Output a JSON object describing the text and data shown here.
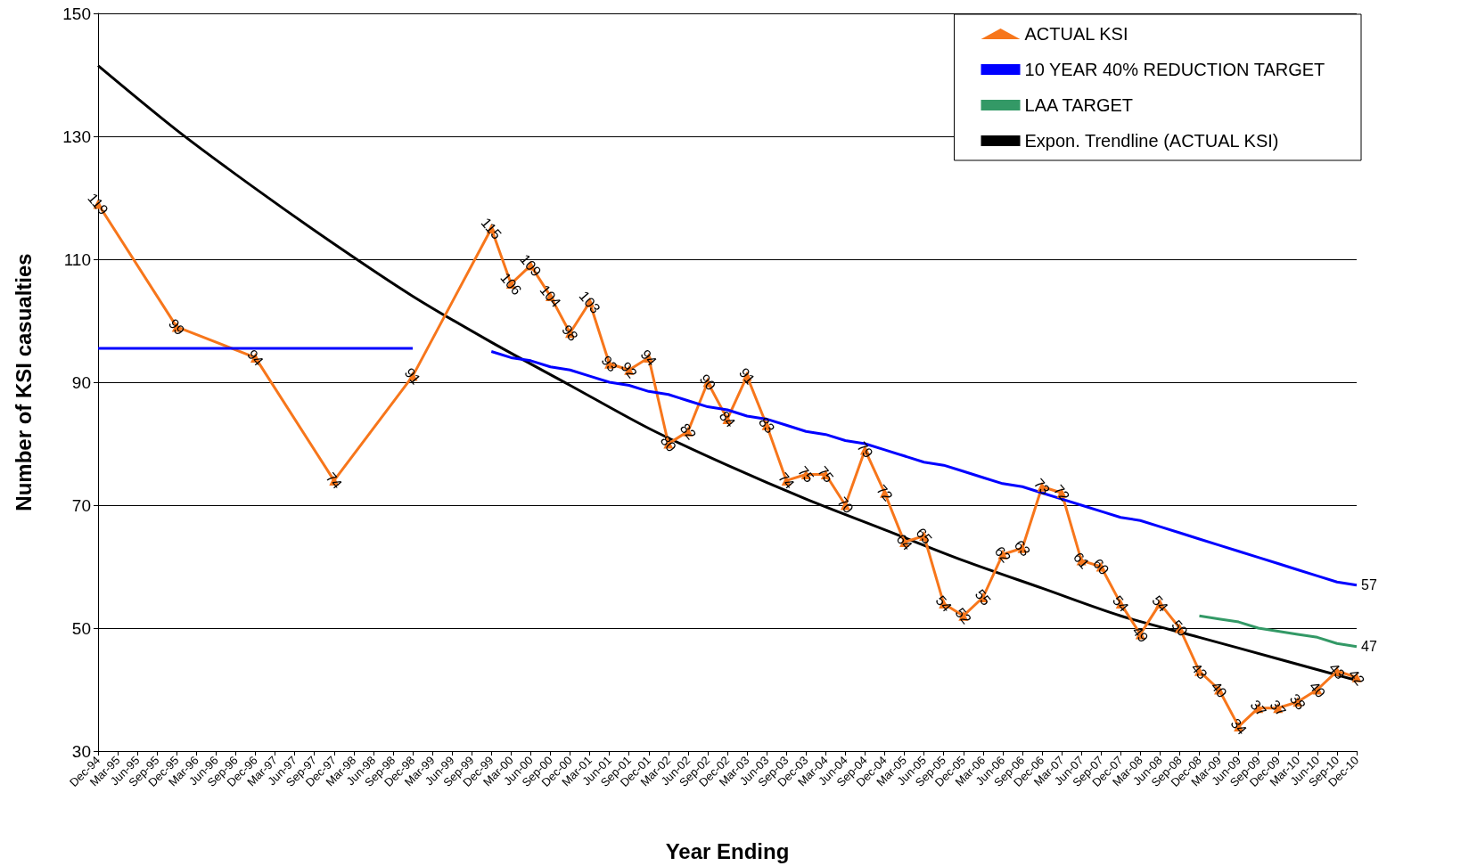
{
  "chart_data": {
    "type": "line",
    "xlabel": "Year Ending",
    "ylabel": "Number of KSI casualties",
    "categories": [
      "Dec-94",
      "Mar-95",
      "Jun-95",
      "Sep-95",
      "Dec-95",
      "Mar-96",
      "Jun-96",
      "Sep-96",
      "Dec-96",
      "Mar-97",
      "Jun-97",
      "Sep-97",
      "Dec-97",
      "Mar-98",
      "Jun-98",
      "Sep-98",
      "Dec-98",
      "Mar-99",
      "Jun-99",
      "Sep-99",
      "Dec-99",
      "Mar-00",
      "Jun-00",
      "Sep-00",
      "Dec-00",
      "Mar-01",
      "Jun-01",
      "Sep-01",
      "Dec-01",
      "Mar-02",
      "Jun-02",
      "Sep-02",
      "Dec-02",
      "Mar-03",
      "Jun-03",
      "Sep-03",
      "Dec-03",
      "Mar-04",
      "Jun-04",
      "Sep-04",
      "Dec-04",
      "Mar-05",
      "Jun-05",
      "Sep-05",
      "Dec-05",
      "Mar-06",
      "Jun-06",
      "Sep-06",
      "Dec-06",
      "Mar-07",
      "Jun-07",
      "Sep-07",
      "Dec-07",
      "Mar-08",
      "Jun-08",
      "Sep-08",
      "Dec-08",
      "Mar-09",
      "Jun-09",
      "Sep-09",
      "Dec-09",
      "Mar-10",
      "Jun-10",
      "Sep-10",
      "Dec-10"
    ],
    "ylim": [
      30,
      150
    ],
    "yticks": [
      30,
      50,
      70,
      90,
      110,
      130,
      150
    ],
    "grid": "y",
    "legend": "top right",
    "series": [
      {
        "name": "ACTUAL KSI",
        "color": "#f7761b",
        "marker": "triangle",
        "x": [
          "Dec-94",
          "Dec-95",
          "Dec-96",
          "Dec-97",
          "Dec-98",
          "Dec-99",
          "Mar-00",
          "Jun-00",
          "Sep-00",
          "Dec-00",
          "Mar-01",
          "Jun-01",
          "Sep-01",
          "Dec-01",
          "Mar-02",
          "Jun-02",
          "Sep-02",
          "Dec-02",
          "Mar-03",
          "Jun-03",
          "Sep-03",
          "Dec-03",
          "Mar-04",
          "Jun-04",
          "Sep-04",
          "Dec-04",
          "Mar-05",
          "Jun-05",
          "Sep-05",
          "Dec-05",
          "Mar-06",
          "Jun-06",
          "Sep-06",
          "Dec-06",
          "Mar-07",
          "Jun-07",
          "Sep-07",
          "Dec-07",
          "Mar-08",
          "Jun-08",
          "Sep-08",
          "Dec-08",
          "Mar-09",
          "Jun-09",
          "Sep-09",
          "Dec-09",
          "Mar-10",
          "Jun-10",
          "Sep-10",
          "Dec-10"
        ],
        "values": [
          119,
          99,
          94,
          74,
          91,
          115,
          106,
          109,
          104,
          98,
          103,
          93,
          92,
          94,
          80,
          82,
          90,
          84,
          91,
          83,
          74,
          75,
          75,
          70,
          79,
          72,
          64,
          65,
          54,
          52,
          55,
          62,
          63,
          73,
          72,
          61,
          60,
          54,
          49,
          54,
          50,
          43,
          40,
          34,
          37,
          37,
          38,
          40,
          43,
          42
        ],
        "value_labels": [
          "119",
          "99",
          "94",
          "74",
          "91",
          "115",
          "106",
          "109",
          "104",
          "98",
          "103",
          "93",
          "92",
          "94",
          "80",
          "82",
          "90",
          "84",
          "91",
          "83",
          "74",
          "75",
          "75",
          "70",
          "79",
          "72",
          "64",
          "65",
          "54",
          "52",
          "55",
          "62",
          "63",
          "73",
          "72",
          "61",
          "60",
          "54",
          "49",
          "54",
          "50",
          "43",
          "40",
          "34",
          "37",
          "37",
          "38",
          "40",
          "43",
          "42"
        ]
      },
      {
        "name": "10 YEAR 40% REDUCTION TARGET",
        "color": "#0000ff",
        "marker": "none",
        "values": [
          95.5,
          95.5,
          95.5,
          95.5,
          95.5,
          95.5,
          95.5,
          95.5,
          95.5,
          95.5,
          95.5,
          95.5,
          95.5,
          95.5,
          95.5,
          95.5,
          95.5,
          null,
          null,
          null,
          95,
          94,
          93.5,
          92.5,
          92,
          91,
          90,
          89.5,
          88.5,
          88,
          87,
          86,
          85.5,
          84.5,
          84,
          83,
          82,
          81.5,
          80.5,
          80,
          79,
          78,
          77,
          76.5,
          75.5,
          74.5,
          73.5,
          73,
          72,
          71,
          70,
          69,
          68,
          67.5,
          66.5,
          65.5,
          64.5,
          63.5,
          62.5,
          61.5,
          60.5,
          59.5,
          58.5,
          57.5,
          57
        ],
        "value_labels": [
          null,
          null,
          null,
          null,
          null,
          null,
          null,
          null,
          null,
          null,
          null,
          null,
          null,
          null,
          null,
          null,
          null,
          null,
          null,
          null,
          null,
          null,
          null,
          null,
          null,
          null,
          null,
          null,
          null,
          null,
          null,
          null,
          null,
          null,
          null,
          null,
          null,
          null,
          null,
          null,
          null,
          null,
          null,
          null,
          null,
          null,
          null,
          null,
          null,
          null,
          null,
          null,
          null,
          null,
          null,
          null,
          null,
          null,
          null,
          null,
          null,
          null,
          null,
          null,
          "57"
        ]
      },
      {
        "name": "LAA TARGET",
        "color": "#339966",
        "marker": "none",
        "values": [
          null,
          null,
          null,
          null,
          null,
          null,
          null,
          null,
          null,
          null,
          null,
          null,
          null,
          null,
          null,
          null,
          null,
          null,
          null,
          null,
          null,
          null,
          null,
          null,
          null,
          null,
          null,
          null,
          null,
          null,
          null,
          null,
          null,
          null,
          null,
          null,
          null,
          null,
          null,
          null,
          null,
          null,
          null,
          null,
          null,
          null,
          null,
          null,
          null,
          null,
          null,
          null,
          null,
          null,
          null,
          null,
          52,
          51.5,
          51,
          50,
          49.5,
          49,
          48.5,
          47.5,
          47
        ],
        "value_labels": [
          null,
          null,
          null,
          null,
          null,
          null,
          null,
          null,
          null,
          null,
          null,
          null,
          null,
          null,
          null,
          null,
          null,
          null,
          null,
          null,
          null,
          null,
          null,
          null,
          null,
          null,
          null,
          null,
          null,
          null,
          null,
          null,
          null,
          null,
          null,
          null,
          null,
          null,
          null,
          null,
          null,
          null,
          null,
          null,
          null,
          null,
          null,
          null,
          null,
          null,
          null,
          null,
          null,
          null,
          null,
          null,
          null,
          null,
          null,
          null,
          null,
          null,
          null,
          null,
          "47"
        ]
      },
      {
        "name": "Expon. Trendline (ACTUAL KSI)",
        "color": "#000000",
        "marker": "none",
        "x": [
          "Dec-94",
          "Dec-95",
          "Dec-96",
          "Dec-97",
          "Dec-98",
          "Dec-99",
          "Dec-00",
          "Dec-01",
          "Dec-02",
          "Dec-03",
          "Dec-04",
          "Dec-05",
          "Dec-06",
          "Dec-07",
          "Dec-08",
          "Dec-09",
          "Dec-10"
        ],
        "values": [
          141.5,
          131,
          121.5,
          112.5,
          104,
          96.5,
          89.5,
          82.5,
          76.5,
          71,
          66,
          61,
          56.5,
          52,
          48.5,
          45,
          41.5
        ]
      }
    ]
  }
}
